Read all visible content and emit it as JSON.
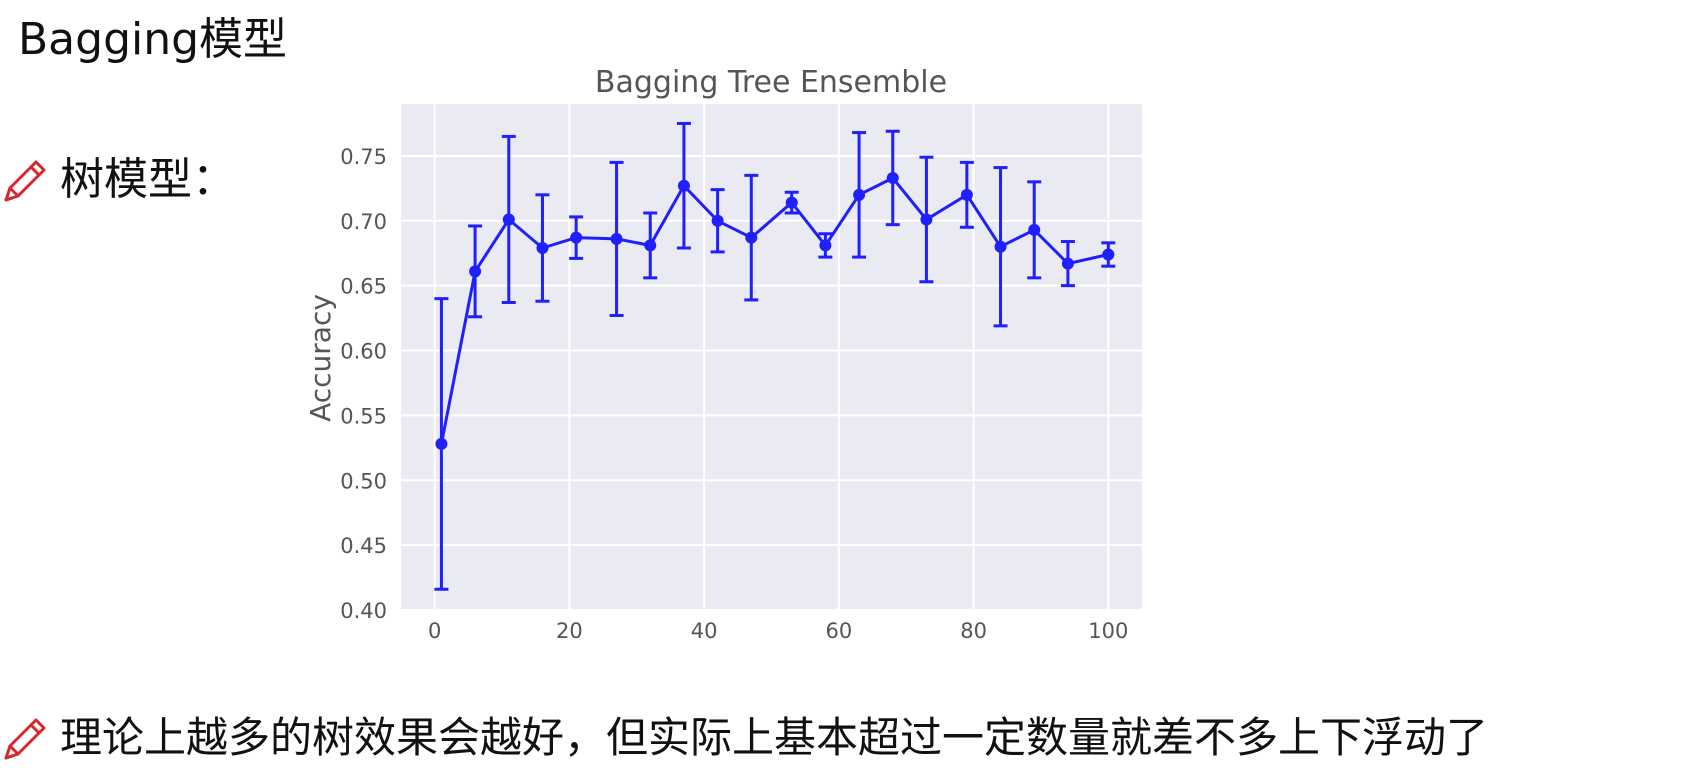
{
  "slide": {
    "title": "Bagging模型",
    "bullet1_label": "树模型：",
    "bullet2_text": "理论上越多的树效果会越好，但实际上基本超过一定数量就差不多上下浮动了",
    "bullet_icon": "pencil-icon",
    "bullet_icon_color": "#d9262c"
  },
  "chart_data": {
    "type": "line",
    "title": "Bagging Tree Ensemble",
    "xlabel": "",
    "ylabel": "Accuracy",
    "xlim": [
      -5,
      105
    ],
    "ylim": [
      0.4,
      0.79
    ],
    "xticks": [
      0,
      20,
      40,
      60,
      80,
      100
    ],
    "yticks": [
      0.4,
      0.45,
      0.5,
      0.55,
      0.6,
      0.65,
      0.7,
      0.75
    ],
    "grid": true,
    "colors": {
      "series": "#1f1fff",
      "background": "#eaeaf2",
      "grid": "#ffffff",
      "text": "#555555"
    },
    "series": [
      {
        "x": [
          1,
          6,
          11,
          16,
          21,
          27,
          32,
          37,
          42,
          47,
          53,
          58,
          63,
          68,
          73,
          79,
          84,
          89,
          94,
          100
        ],
        "y": [
          0.528,
          0.661,
          0.701,
          0.679,
          0.687,
          0.686,
          0.681,
          0.727,
          0.7,
          0.687,
          0.714,
          0.681,
          0.72,
          0.733,
          0.701,
          0.72,
          0.68,
          0.693,
          0.667,
          0.674
        ],
        "yerr": [
          0.112,
          0.035,
          0.064,
          0.041,
          0.016,
          0.059,
          0.025,
          0.048,
          0.024,
          0.048,
          0.008,
          0.009,
          0.048,
          0.036,
          0.048,
          0.025,
          0.061,
          0.037,
          0.017,
          0.009
        ]
      }
    ]
  }
}
